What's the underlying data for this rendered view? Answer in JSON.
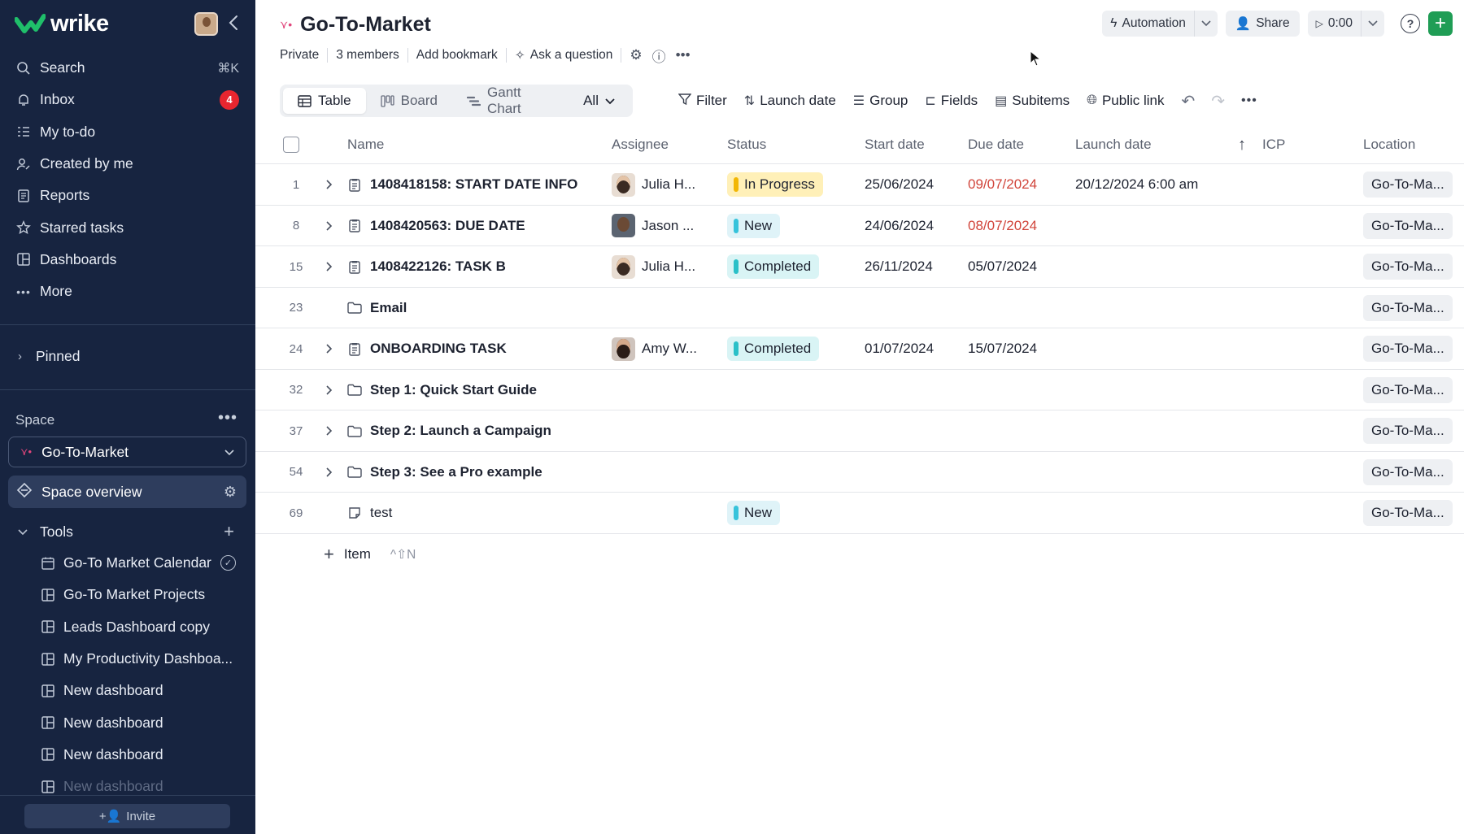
{
  "app": {
    "logo_text": "wrike"
  },
  "sidebar": {
    "nav": [
      {
        "label": "Search",
        "icon": "search-icon",
        "hint": "⌘K"
      },
      {
        "label": "Inbox",
        "icon": "bell-icon",
        "badge": "4"
      },
      {
        "label": "My to-do",
        "icon": "todo-icon"
      },
      {
        "label": "Created by me",
        "icon": "user-edit-icon"
      },
      {
        "label": "Reports",
        "icon": "report-icon"
      },
      {
        "label": "Starred tasks",
        "icon": "star-icon"
      },
      {
        "label": "Dashboards",
        "icon": "dashboard-icon"
      },
      {
        "label": "More",
        "icon": "more-icon"
      }
    ],
    "pinned_label": "Pinned",
    "space_label": "Space",
    "space_selected": "Go-To-Market",
    "space_overview": "Space overview",
    "tools_label": "Tools",
    "tools": [
      {
        "label": "Go-To Market Calendar",
        "icon": "calendar-icon",
        "checked": true
      },
      {
        "label": "Go-To Market Projects",
        "icon": "dashboard-icon"
      },
      {
        "label": "Leads Dashboard copy",
        "icon": "dashboard-icon"
      },
      {
        "label": "My Productivity Dashboa...",
        "icon": "dashboard-icon"
      },
      {
        "label": "New dashboard",
        "icon": "dashboard-icon"
      },
      {
        "label": "New dashboard",
        "icon": "dashboard-icon"
      },
      {
        "label": "New dashboard",
        "icon": "dashboard-icon"
      },
      {
        "label": "New dashboard",
        "icon": "dashboard-icon"
      }
    ],
    "invite_label": "Invite"
  },
  "header": {
    "title": "Go-To-Market",
    "meta": {
      "privacy": "Private",
      "members": "3 members",
      "bookmark": "Add bookmark",
      "ask": "Ask a question"
    },
    "actions": {
      "automation": "Automation",
      "share": "Share",
      "timer": "0:00"
    }
  },
  "views": {
    "tabs": [
      {
        "label": "Table",
        "icon": "table-icon",
        "active": true
      },
      {
        "label": "Board",
        "icon": "board-icon"
      },
      {
        "label": "Gantt Chart",
        "icon": "gantt-icon"
      }
    ],
    "all_label": "All"
  },
  "toolbar": {
    "filter": "Filter",
    "sort": "Launch date",
    "group": "Group",
    "fields": "Fields",
    "subitems": "Subitems",
    "public_link": "Public link"
  },
  "table": {
    "columns": {
      "name": "Name",
      "assignee": "Assignee",
      "status": "Status",
      "start": "Start date",
      "due": "Due date",
      "launch": "Launch date",
      "icp": "ICP",
      "location": "Location"
    },
    "rows": [
      {
        "num": "1",
        "expandable": true,
        "type": "task",
        "name": "1408418158: START DATE INFO",
        "assignee": "Julia H...",
        "avatar": "julia",
        "status": "In Progress",
        "status_kind": "prog",
        "start": "25/06/2024",
        "due": "09/07/2024",
        "due_overdue": true,
        "launch": "20/12/2024 6:00 am",
        "location": "Go-To-Ma..."
      },
      {
        "num": "8",
        "expandable": true,
        "type": "task",
        "name": "1408420563: DUE DATE",
        "assignee": "Jason ...",
        "avatar": "jason",
        "status": "New",
        "status_kind": "new",
        "start": "24/06/2024",
        "due": "08/07/2024",
        "due_overdue": true,
        "launch": "",
        "location": "Go-To-Ma..."
      },
      {
        "num": "15",
        "expandable": true,
        "type": "task",
        "name": "1408422126: TASK B",
        "assignee": "Julia H...",
        "avatar": "julia",
        "status": "Completed",
        "status_kind": "done",
        "start": "26/11/2024",
        "due": "05/07/2024",
        "due_overdue": false,
        "launch": "",
        "location": "Go-To-Ma..."
      },
      {
        "num": "23",
        "expandable": false,
        "type": "folder",
        "name": "Email",
        "assignee": "",
        "avatar": "",
        "status": "",
        "status_kind": "",
        "start": "",
        "due": "",
        "due_overdue": false,
        "launch": "",
        "location": "Go-To-Ma..."
      },
      {
        "num": "24",
        "expandable": true,
        "type": "task",
        "name": "ONBOARDING TASK",
        "assignee": "Amy W...",
        "avatar": "amy",
        "status": "Completed",
        "status_kind": "done",
        "start": "01/07/2024",
        "due": "15/07/2024",
        "due_overdue": false,
        "launch": "",
        "location": "Go-To-Ma..."
      },
      {
        "num": "32",
        "expandable": true,
        "type": "folder",
        "name": "Step 1: Quick Start Guide",
        "assignee": "",
        "avatar": "",
        "status": "",
        "status_kind": "",
        "start": "",
        "due": "",
        "due_overdue": false,
        "launch": "",
        "location": "Go-To-Ma..."
      },
      {
        "num": "37",
        "expandable": true,
        "type": "folder",
        "name": "Step 2: Launch a Campaign",
        "assignee": "",
        "avatar": "",
        "status": "",
        "status_kind": "",
        "start": "",
        "due": "",
        "due_overdue": false,
        "launch": "",
        "location": "Go-To-Ma..."
      },
      {
        "num": "54",
        "expandable": true,
        "type": "folder",
        "name": "Step 3: See a Pro example",
        "assignee": "",
        "avatar": "",
        "status": "",
        "status_kind": "",
        "start": "",
        "due": "",
        "due_overdue": false,
        "launch": "",
        "location": "Go-To-Ma..."
      },
      {
        "num": "69",
        "expandable": false,
        "type": "note",
        "name": "test",
        "assignee": "",
        "avatar": "",
        "status": "New",
        "status_kind": "new",
        "start": "",
        "due": "",
        "due_overdue": false,
        "launch": "",
        "location": "Go-To-Ma..."
      }
    ],
    "add_item": {
      "label": "Item",
      "shortcut": "^⇧N"
    }
  }
}
